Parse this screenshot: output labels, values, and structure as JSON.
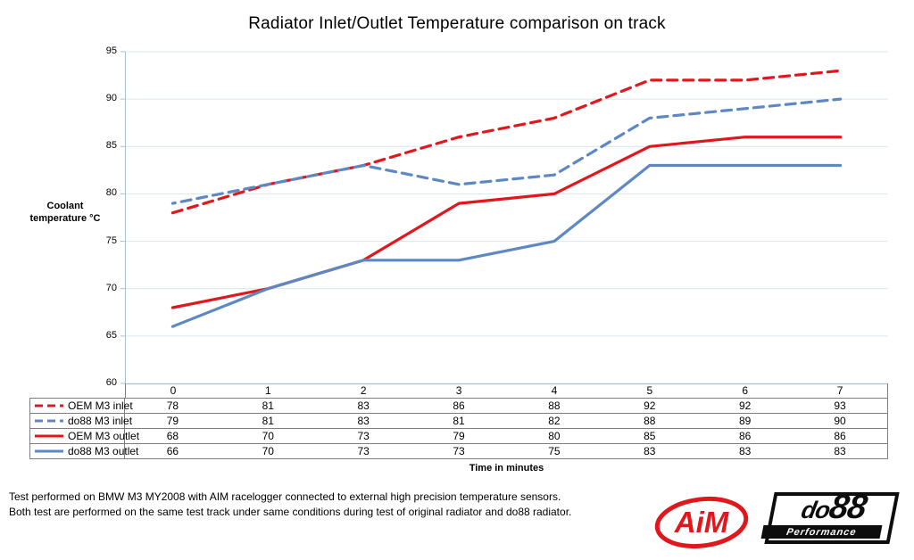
{
  "title": "Radiator Inlet/Outlet Temperature comparison on track",
  "y_axis": {
    "title_line1": "Coolant",
    "title_line2": "temperature °C",
    "min": 60,
    "max": 95,
    "step": 5
  },
  "x_axis": {
    "title": "Time in minutes"
  },
  "chart_data": {
    "type": "line",
    "categories": [
      "0",
      "1",
      "2",
      "3",
      "4",
      "5",
      "6",
      "7"
    ],
    "series": [
      {
        "name": "OEM M3 inlet",
        "color": "#e0181d",
        "dashed": true,
        "values": [
          78,
          81,
          83,
          86,
          88,
          92,
          92,
          93
        ]
      },
      {
        "name": "do88 M3 inlet",
        "color": "#5e88c2",
        "dashed": true,
        "values": [
          79,
          81,
          83,
          81,
          82,
          88,
          89,
          90
        ]
      },
      {
        "name": "OEM M3 outlet",
        "color": "#e0181d",
        "dashed": false,
        "values": [
          68,
          70,
          73,
          79,
          80,
          85,
          86,
          86
        ]
      },
      {
        "name": "do88 M3 outlet",
        "color": "#5e88c2",
        "dashed": false,
        "values": [
          66,
          70,
          73,
          73,
          75,
          83,
          83,
          83
        ]
      }
    ],
    "title": "Radiator Inlet/Outlet Temperature comparison on track",
    "xlabel": "Time in minutes",
    "ylabel": "Coolant temperature °C",
    "ylim": [
      60,
      95
    ],
    "grid": true,
    "legend_position": "table-left"
  },
  "notes": {
    "line1": "Test performed on BMW M3 MY2008 with AIM racelogger connected to external high precision temperature sensors.",
    "line2": "Both test are performed on the same test track under same conditions during test of original radiator and do88 radiator."
  },
  "logos": {
    "aim_text": "AiM",
    "do88_text_small": "do",
    "do88_text_big": "88",
    "do88_sub": "Performance"
  },
  "colors": {
    "red": "#e0181d",
    "blue": "#5e88c2",
    "gridline": "#dbe4f0",
    "axis": "#aabfd6",
    "table_border": "#7f7f7f",
    "logo_red": "#e0181d",
    "logo_black": "#0d0d0d"
  }
}
